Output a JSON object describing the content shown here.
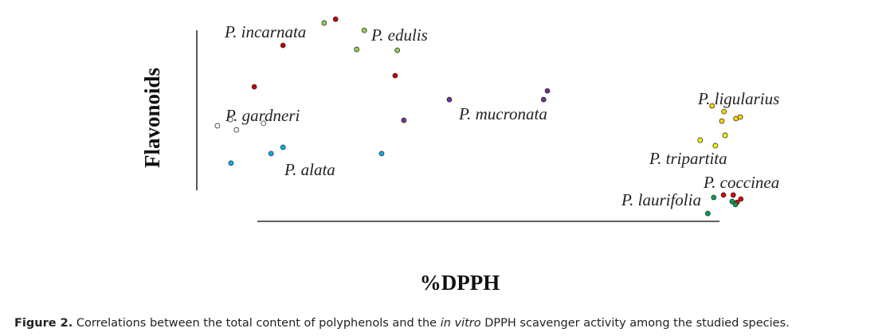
{
  "chart_data": {
    "type": "scatter",
    "x_label": "%DPPH",
    "y_label": "Flavonoids",
    "xlim": [
      0,
      100
    ],
    "ylim": [
      0,
      100
    ],
    "series": [
      {
        "name": "P. incarnata",
        "color": "#c00000",
        "x": [
          14.0,
          23.7,
          8.7,
          34.7
        ],
        "values": [
          85.5,
          98.4,
          65.1,
          70.6
        ]
      },
      {
        "name": "P. edulis",
        "color": "#92d050",
        "x": [
          21.6,
          29.0,
          27.6,
          35.1
        ],
        "values": [
          96.5,
          92.9,
          83.5,
          83.1
        ]
      },
      {
        "name": "P. mucronata",
        "color": "#7030a0",
        "x": [
          44.7,
          62.8,
          62.1,
          36.3
        ],
        "values": [
          58.8,
          63.1,
          58.8,
          48.6
        ]
      },
      {
        "name": "P. gardneri",
        "color": "#ffffff",
        "x": [
          1.9,
          4.3,
          5.4,
          10.4
        ],
        "values": [
          45.9,
          49.0,
          43.9,
          47.1
        ]
      },
      {
        "name": "P. alata",
        "color": "#00b0f0",
        "x": [
          4.4,
          11.8,
          14.0,
          32.2
        ],
        "values": [
          27.5,
          32.2,
          35.3,
          32.2
        ]
      },
      {
        "name": "P. ligularius",
        "color": "#ffd700",
        "x": [
          93.2,
          95.4,
          95.0,
          97.6,
          98.4
        ],
        "values": [
          55.7,
          52.9,
          48.2,
          49.4,
          50.2
        ]
      },
      {
        "name": "P. tripartita",
        "color": "#ffff00",
        "x": [
          95.6,
          91.0,
          93.8
        ],
        "values": [
          41.2,
          38.8,
          36.1
        ]
      },
      {
        "name": "P. coccinea",
        "color": "#e00000",
        "x": [
          95.3,
          97.1,
          98.5,
          97.8
        ],
        "values": [
          11.8,
          11.8,
          9.8,
          8.2
        ]
      },
      {
        "name": "P. laurifolia",
        "color": "#00a050",
        "x": [
          93.5,
          96.9,
          97.5,
          92.4
        ],
        "values": [
          10.6,
          8.6,
          7.1,
          2.7
        ]
      }
    ]
  },
  "caption": {
    "label": "Figure 2.",
    "text_before": "Correlations between the total content of polyphenols and the",
    "emphasis": "in vitro",
    "text_after": "DPPH scavenger activity among the studied species."
  }
}
